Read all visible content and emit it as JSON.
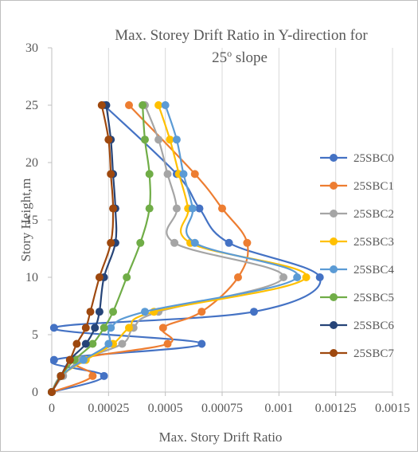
{
  "chart_data": {
    "type": "line",
    "title_line1": "Max. Storey Drift Ratio in Y-direction for",
    "title_line2_prefix": "25",
    "title_line2_sup": "o",
    "title_line2_suffix": " slope",
    "xlabel": "Max. Story Drift Ratio",
    "ylabel": "Story Height,m",
    "xlim": [
      0,
      0.0015
    ],
    "ylim": [
      0,
      30
    ],
    "x_ticks": [
      0,
      0.00025,
      0.0005,
      0.00075,
      0.001,
      0.00125,
      0.0015
    ],
    "x_tick_labels": [
      "0",
      "0.00025",
      "0.0005",
      "0.00075",
      "0.001",
      "0.00125",
      "0.0015"
    ],
    "y_ticks": [
      0,
      5,
      10,
      15,
      20,
      25,
      30
    ],
    "y_tick_labels": [
      "0",
      "5",
      "10",
      "15",
      "20",
      "25",
      "30"
    ],
    "grid": "vertical",
    "legend_position": "right",
    "series": [
      {
        "name": "25SBC0",
        "color": "#4472c4",
        "points": [
          [
            0,
            0
          ],
          [
            0.00023,
            1.4
          ],
          [
            1e-05,
            2.8
          ],
          [
            0.00066,
            4.2
          ],
          [
            1e-05,
            5.6
          ],
          [
            0.00089,
            7
          ],
          [
            0.00118,
            10
          ],
          [
            0.00078,
            13
          ],
          [
            0.00065,
            16
          ],
          [
            0.00055,
            19
          ],
          [
            0.00023,
            25
          ]
        ]
      },
      {
        "name": "25SBC1",
        "color": "#ed7d31",
        "points": [
          [
            0,
            0
          ],
          [
            0.00018,
            1.4
          ],
          [
            0.00011,
            2.8
          ],
          [
            0.00051,
            4.2
          ],
          [
            0.00049,
            5.6
          ],
          [
            0.00066,
            7
          ],
          [
            0.00082,
            10
          ],
          [
            0.00086,
            13
          ],
          [
            0.00075,
            16
          ],
          [
            0.00063,
            19
          ],
          [
            0.00034,
            25
          ]
        ]
      },
      {
        "name": "25SBC2",
        "color": "#a5a5a5",
        "points": [
          [
            0,
            0
          ],
          [
            5e-05,
            1.4
          ],
          [
            0.00013,
            2.8
          ],
          [
            0.00031,
            4.2
          ],
          [
            0.00036,
            5.6
          ],
          [
            0.00047,
            7
          ],
          [
            0.00102,
            10
          ],
          [
            0.00054,
            13
          ],
          [
            0.00055,
            16
          ],
          [
            0.00051,
            19
          ],
          [
            0.00047,
            22
          ],
          [
            0.00041,
            25
          ]
        ]
      },
      {
        "name": "25SBC3",
        "color": "#ffc000",
        "points": [
          [
            0,
            0
          ],
          [
            4e-05,
            1.4
          ],
          [
            0.00015,
            2.8
          ],
          [
            0.00027,
            4.2
          ],
          [
            0.00034,
            5.6
          ],
          [
            0.00045,
            7
          ],
          [
            0.00112,
            10
          ],
          [
            0.00061,
            13
          ],
          [
            0.0006,
            16
          ],
          [
            0.00056,
            19
          ],
          [
            0.00052,
            22
          ],
          [
            0.00047,
            25
          ]
        ]
      },
      {
        "name": "25SBC4",
        "color": "#5b9bd5",
        "points": [
          [
            0,
            0
          ],
          [
            4e-05,
            1.4
          ],
          [
            0.00014,
            2.8
          ],
          [
            0.00025,
            4.2
          ],
          [
            0.00026,
            5.6
          ],
          [
            0.00041,
            7
          ],
          [
            0.00108,
            10
          ],
          [
            0.00063,
            13
          ],
          [
            0.00062,
            16
          ],
          [
            0.00058,
            19
          ],
          [
            0.00055,
            22
          ],
          [
            0.0005,
            25
          ]
        ]
      },
      {
        "name": "25SBC5",
        "color": "#70ad47",
        "points": [
          [
            0,
            0
          ],
          [
            4e-05,
            1.4
          ],
          [
            0.0001,
            2.8
          ],
          [
            0.00018,
            4.2
          ],
          [
            0.00023,
            5.6
          ],
          [
            0.00027,
            7
          ],
          [
            0.00033,
            10
          ],
          [
            0.00039,
            13
          ],
          [
            0.00043,
            16
          ],
          [
            0.00043,
            19
          ],
          [
            0.00041,
            22
          ],
          [
            0.0004,
            25
          ]
        ]
      },
      {
        "name": "25SBC6",
        "color": "#264478",
        "points": [
          [
            0,
            0
          ],
          [
            4e-05,
            1.4
          ],
          [
            8e-05,
            2.8
          ],
          [
            0.00015,
            4.2
          ],
          [
            0.00019,
            5.6
          ],
          [
            0.00021,
            7
          ],
          [
            0.00023,
            10
          ],
          [
            0.00028,
            13
          ],
          [
            0.00028,
            16
          ],
          [
            0.00027,
            19
          ],
          [
            0.00026,
            22
          ],
          [
            0.00024,
            25
          ]
        ]
      },
      {
        "name": "25SBC7",
        "color": "#9e480e",
        "points": [
          [
            0,
            0
          ],
          [
            4e-05,
            1.4
          ],
          [
            8e-05,
            2.8
          ],
          [
            0.00011,
            4.2
          ],
          [
            0.00015,
            5.6
          ],
          [
            0.00017,
            7
          ],
          [
            0.00021,
            10
          ],
          [
            0.00026,
            13
          ],
          [
            0.00027,
            16
          ],
          [
            0.00026,
            19
          ],
          [
            0.00025,
            22
          ],
          [
            0.00022,
            25
          ]
        ]
      }
    ]
  }
}
